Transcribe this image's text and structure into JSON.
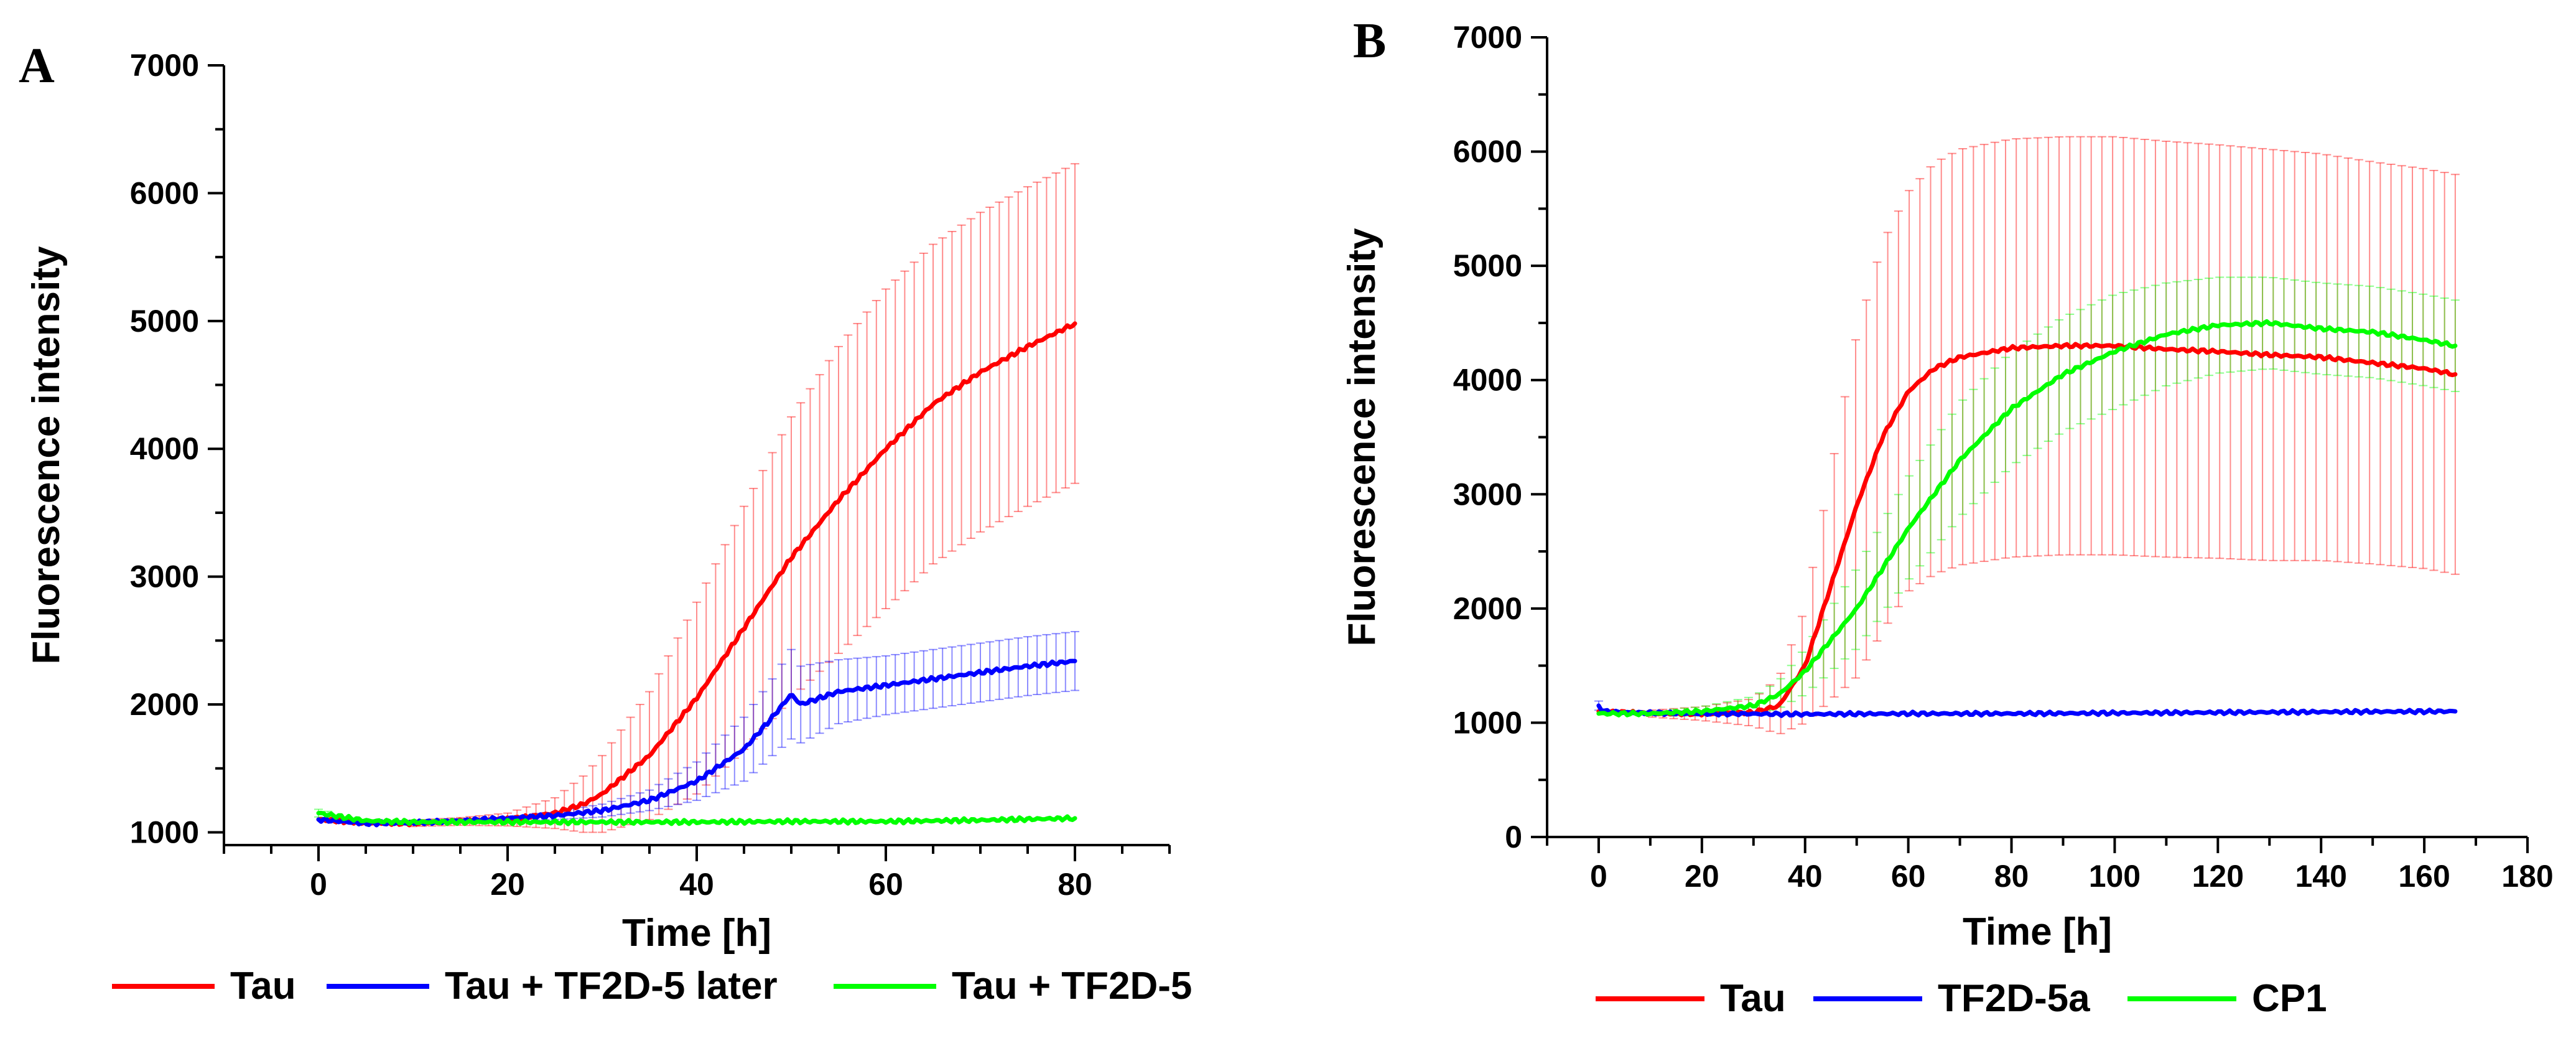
{
  "chart_data": [
    {
      "panel": "A",
      "type": "line",
      "xlabel": "Time [h]",
      "ylabel": "Fluorescence intensity",
      "xlim": [
        -10,
        90
      ],
      "ylim": [
        900,
        7000
      ],
      "xticks": [
        0,
        20,
        40,
        60,
        80
      ],
      "yticks": [
        1000,
        2000,
        3000,
        4000,
        5000,
        6000,
        7000
      ],
      "legend_position": "bottom",
      "series": [
        {
          "name": "Tau",
          "color": "#ff0000",
          "x": [
            0,
            5,
            10,
            15,
            20,
            25,
            28,
            30,
            35,
            40,
            45,
            50,
            55,
            60,
            65,
            70,
            75,
            80
          ],
          "y": [
            1100,
            1075,
            1070,
            1085,
            1100,
            1150,
            1220,
            1300,
            1600,
            2050,
            2600,
            3150,
            3600,
            4000,
            4350,
            4600,
            4800,
            4980
          ],
          "err": [
            0,
            20,
            25,
            30,
            50,
            120,
            220,
            300,
            500,
            750,
            950,
            1100,
            1200,
            1250,
            1250,
            1250,
            1250,
            1250
          ]
        },
        {
          "name": "Tau + TF2D-5 later",
          "color": "#0000ff",
          "x": [
            0,
            5,
            10,
            15,
            20,
            25,
            30,
            35,
            40,
            45,
            48,
            50,
            51,
            55,
            60,
            65,
            70,
            75,
            80
          ],
          "y": [
            1100,
            1070,
            1075,
            1090,
            1110,
            1130,
            1170,
            1250,
            1400,
            1650,
            1900,
            2080,
            2000,
            2100,
            2150,
            2200,
            2250,
            2300,
            2340
          ],
          "err": [
            0,
            15,
            20,
            20,
            20,
            30,
            50,
            80,
            150,
            250,
            300,
            350,
            300,
            250,
            230,
            230,
            230,
            230,
            230
          ]
        },
        {
          "name": "Tau + TF2D-5",
          "color": "#00ff00",
          "x": [
            0,
            5,
            10,
            20,
            30,
            40,
            50,
            60,
            70,
            80
          ],
          "y": [
            1150,
            1090,
            1080,
            1080,
            1080,
            1080,
            1085,
            1085,
            1095,
            1110
          ],
          "err": [
            30,
            10,
            10,
            10,
            10,
            10,
            10,
            10,
            10,
            10
          ]
        }
      ]
    },
    {
      "panel": "B",
      "type": "line",
      "xlabel": "Time [h]",
      "ylabel": "Fluorescence intensity",
      "xlim": [
        -10,
        180
      ],
      "ylim": [
        0,
        7000
      ],
      "xticks": [
        0,
        20,
        40,
        60,
        80,
        100,
        120,
        140,
        160,
        180
      ],
      "yticks": [
        0,
        1000,
        2000,
        3000,
        4000,
        5000,
        6000,
        7000
      ],
      "legend_position": "bottom",
      "series": [
        {
          "name": "Tau",
          "color": "#ff0000",
          "x": [
            0,
            10,
            20,
            30,
            35,
            40,
            45,
            50,
            55,
            60,
            65,
            70,
            80,
            90,
            100,
            110,
            120,
            130,
            140,
            150,
            160,
            166
          ],
          "y": [
            1100,
            1080,
            1080,
            1090,
            1150,
            1500,
            2200,
            2900,
            3500,
            3900,
            4100,
            4200,
            4280,
            4300,
            4300,
            4270,
            4250,
            4220,
            4200,
            4150,
            4100,
            4050
          ],
          "err": [
            0,
            30,
            60,
            120,
            250,
            500,
            1000,
            1500,
            1700,
            1750,
            1800,
            1820,
            1830,
            1830,
            1830,
            1820,
            1810,
            1800,
            1780,
            1760,
            1750,
            1750
          ]
        },
        {
          "name": "TF2D-5a",
          "color": "#0000ff",
          "x": [
            0,
            1,
            5,
            20,
            40,
            60,
            80,
            100,
            120,
            140,
            166
          ],
          "y": [
            1150,
            1100,
            1090,
            1080,
            1075,
            1080,
            1080,
            1085,
            1090,
            1095,
            1100
          ],
          "err": [
            40,
            15,
            10,
            10,
            10,
            10,
            10,
            10,
            10,
            10,
            10
          ]
        },
        {
          "name": "CP1",
          "color": "#00ff00",
          "x": [
            0,
            10,
            20,
            30,
            35,
            40,
            50,
            60,
            70,
            80,
            90,
            100,
            110,
            120,
            130,
            140,
            150,
            160,
            166
          ],
          "y": [
            1080,
            1080,
            1100,
            1150,
            1250,
            1450,
            2000,
            2700,
            3300,
            3750,
            4050,
            4250,
            4400,
            4480,
            4500,
            4450,
            4420,
            4350,
            4300
          ],
          "err": [
            0,
            20,
            40,
            80,
            120,
            200,
            350,
            450,
            500,
            500,
            500,
            500,
            450,
            420,
            400,
            400,
            400,
            400,
            400
          ]
        }
      ]
    }
  ]
}
